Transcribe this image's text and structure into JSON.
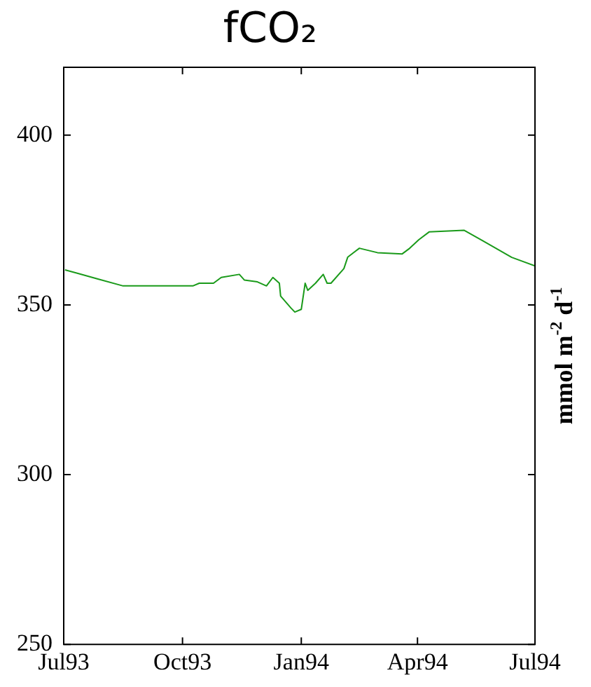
{
  "chart_data": {
    "type": "line",
    "title": "fCO₂",
    "y2label": "mmol m$^{-2}$ d$^{-1}$",
    "x": [
      "1993-07-02",
      "1993-07-11",
      "1993-07-27",
      "1993-08-16",
      "1993-10-09",
      "1993-10-14",
      "1993-10-25",
      "1993-10-31",
      "1993-11-14",
      "1993-11-18",
      "1993-11-28",
      "1993-12-05",
      "1993-12-10",
      "1993-12-15",
      "1993-12-16",
      "1993-12-24",
      "1993-12-27",
      "1994-01-01",
      "1994-01-04",
      "1994-01-06",
      "1994-01-12",
      "1994-01-18",
      "1994-01-21",
      "1994-01-24",
      "1994-02-03",
      "1994-02-06",
      "1994-02-15",
      "1994-03-01",
      "1994-03-20",
      "1994-03-26",
      "1994-04-02",
      "1994-04-10",
      "1994-05-07",
      "1994-05-21",
      "1994-06-13",
      "1994-07-01"
    ],
    "series": [
      {
        "color": "#1a9a1a",
        "values": [
          360.3,
          359.4,
          357.7,
          355.6,
          355.6,
          356.4,
          356.4,
          358.1,
          359,
          357.3,
          356.8,
          355.6,
          358.1,
          356.4,
          352.6,
          349.1,
          347.9,
          348.7,
          356.4,
          354.3,
          356.4,
          359,
          356.4,
          356.4,
          360.7,
          364.1,
          366.7,
          365.4,
          365,
          366.7,
          369.2,
          371.5,
          372,
          369,
          364,
          361.5
        ]
      }
    ],
    "xlim": [
      "1993-07-01",
      "1994-07-01"
    ],
    "xticks": [
      {
        "value": "1993-07-01",
        "label": "Jul93"
      },
      {
        "value": "1993-10-01",
        "label": "Oct93"
      },
      {
        "value": "1994-01-01",
        "label": "Jan94"
      },
      {
        "value": "1994-04-01",
        "label": "Apr94"
      },
      {
        "value": "1994-07-01",
        "label": "Jul94"
      }
    ],
    "ylim": [
      250,
      420
    ],
    "yticks": [
      250,
      300,
      350,
      400
    ],
    "grid": false,
    "legend": false,
    "marker": "none",
    "line_style": "solid"
  }
}
